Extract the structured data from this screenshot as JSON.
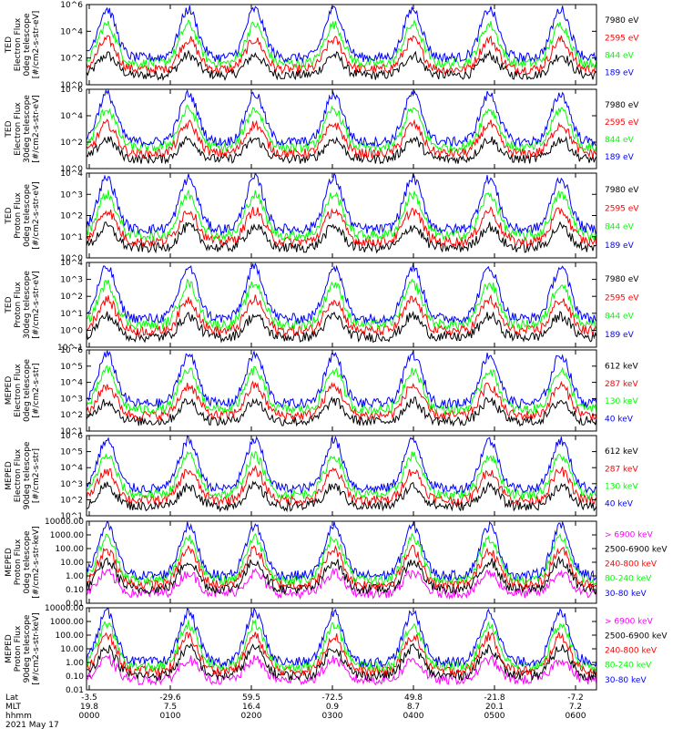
{
  "chart_data": {
    "type": "line",
    "date_label": "2021 May 17",
    "x_axis_rows": [
      {
        "label": "Lat",
        "ticks": [
          "-3.5",
          "-29.6",
          "59.5",
          "-72.5",
          "49.8",
          "-21.8",
          "-7.2"
        ]
      },
      {
        "label": "MLT",
        "ticks": [
          "19.8",
          "7.5",
          "16.4",
          "0.9",
          "8.7",
          "20.1",
          "7.2"
        ]
      },
      {
        "label": "hhmm",
        "ticks": [
          "0000",
          "0100",
          "0200",
          "0300",
          "0400",
          "0500",
          "0600"
        ]
      }
    ],
    "panels": [
      {
        "ylabel_lines": [
          "TED",
          "Electron Flux",
          "0deg telescope",
          "[#/cm2-s-str-eV]"
        ],
        "yscale": "log",
        "ylim": [
          1,
          1000000
        ],
        "ytick_labels": [
          "10^0",
          "10^2",
          "10^4",
          "10^6"
        ],
        "series": [
          {
            "name": "7980 eV",
            "color": "#000000"
          },
          {
            "name": "2595 eV",
            "color": "#ff0000"
          },
          {
            "name": "844 eV",
            "color": "#00ff00"
          },
          {
            "name": "189 eV",
            "color": "#0000ff"
          }
        ]
      },
      {
        "ylabel_lines": [
          "TED",
          "Electron Flux",
          "30deg telescope",
          "[#/cm2-s-str-eV]"
        ],
        "yscale": "log",
        "ylim": [
          1,
          1000000
        ],
        "ytick_labels": [
          "10^0",
          "10^2",
          "10^4",
          "10^6"
        ],
        "series": [
          {
            "name": "7980 eV",
            "color": "#000000"
          },
          {
            "name": "2595 eV",
            "color": "#ff0000"
          },
          {
            "name": "844 eV",
            "color": "#00ff00"
          },
          {
            "name": "189 eV",
            "color": "#0000ff"
          }
        ]
      },
      {
        "ylabel_lines": [
          "TED",
          "Proton Flux",
          "0deg telescope",
          "[#/cm2-s-str-eV]"
        ],
        "yscale": "log",
        "ylim": [
          1,
          10000
        ],
        "ytick_labels": [
          "10^0",
          "10^1",
          "10^2",
          "10^3",
          "10^4"
        ],
        "series": [
          {
            "name": "7980 eV",
            "color": "#000000"
          },
          {
            "name": "2595 eV",
            "color": "#ff0000"
          },
          {
            "name": "844 eV",
            "color": "#00ff00"
          },
          {
            "name": "189 eV",
            "color": "#0000ff"
          }
        ]
      },
      {
        "ylabel_lines": [
          "TED",
          "Proton Flux",
          "30deg telescope",
          "[#/cm2-s-str-eV]"
        ],
        "yscale": "log",
        "ylim": [
          0.1,
          10000
        ],
        "ytick_labels": [
          "10^-1",
          "10^0",
          "10^1",
          "10^2",
          "10^3",
          "10^4"
        ],
        "series": [
          {
            "name": "7980 eV",
            "color": "#000000"
          },
          {
            "name": "2595 eV",
            "color": "#ff0000"
          },
          {
            "name": "844 eV",
            "color": "#00ff00"
          },
          {
            "name": "189 eV",
            "color": "#0000ff"
          }
        ]
      },
      {
        "ylabel_lines": [
          "MEPED",
          "Electron Flux",
          "0deg telescope",
          "[#/cm2-s-str]"
        ],
        "yscale": "log",
        "ylim": [
          10,
          1000000
        ],
        "ytick_labels": [
          "10^1",
          "10^2",
          "10^3",
          "10^4",
          "10^5",
          "10^6"
        ],
        "series": [
          {
            "name": "612 keV",
            "color": "#000000"
          },
          {
            "name": "287 keV",
            "color": "#ff0000"
          },
          {
            "name": "130 keV",
            "color": "#00ff00"
          },
          {
            "name": "40 keV",
            "color": "#0000ff"
          }
        ]
      },
      {
        "ylabel_lines": [
          "MEPED",
          "Electron Flux",
          "90deg telescope",
          "[#/cm2-s-str]"
        ],
        "yscale": "log",
        "ylim": [
          10,
          1000000
        ],
        "ytick_labels": [
          "10^1",
          "10^2",
          "10^3",
          "10^4",
          "10^5",
          "10^6"
        ],
        "series": [
          {
            "name": "612 keV",
            "color": "#000000"
          },
          {
            "name": "287 keV",
            "color": "#ff0000"
          },
          {
            "name": "130 keV",
            "color": "#00ff00"
          },
          {
            "name": "40 keV",
            "color": "#0000ff"
          }
        ]
      },
      {
        "ylabel_lines": [
          "MEPED",
          "Proton Flux",
          "0deg telescope",
          "[#/cm2-s-str-keV]"
        ],
        "yscale": "log",
        "ylim": [
          0.01,
          10000
        ],
        "ytick_labels": [
          "0.01",
          "0.10",
          "1.00",
          "10.00",
          "100.00",
          "1000.00",
          "10000.00"
        ],
        "series": [
          {
            "name": "> 6900 keV",
            "color": "#ff00ff"
          },
          {
            "name": "2500-6900 keV",
            "color": "#000000"
          },
          {
            "name": "240-800 keV",
            "color": "#ff0000"
          },
          {
            "name": "80-240 keV",
            "color": "#00ff00"
          },
          {
            "name": "30-80 keV",
            "color": "#0000ff"
          }
        ]
      },
      {
        "ylabel_lines": [
          "MEPED",
          "Proton Flux",
          "90deg telescope",
          "[#/cm2-s-str-keV]"
        ],
        "yscale": "log",
        "ylim": [
          0.01,
          10000
        ],
        "ytick_labels": [
          "0.01",
          "0.10",
          "1.00",
          "10.00",
          "100.00",
          "1000.00",
          "10000.00"
        ],
        "series": [
          {
            "name": "> 6900 keV",
            "color": "#ff00ff"
          },
          {
            "name": "2500-6900 keV",
            "color": "#000000"
          },
          {
            "name": "240-800 keV",
            "color": "#ff0000"
          },
          {
            "name": "80-240 keV",
            "color": "#00ff00"
          },
          {
            "name": "30-80 keV",
            "color": "#0000ff"
          }
        ]
      }
    ]
  }
}
